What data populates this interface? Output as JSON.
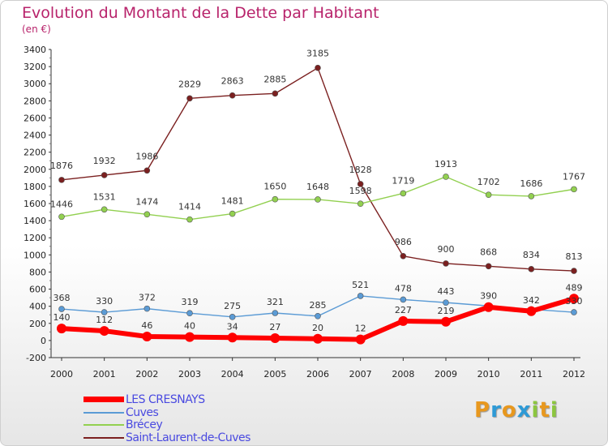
{
  "title": "Evolution du Montant de la Dette par Habitant",
  "subtitle": "(en €)",
  "logo": {
    "letters": [
      "P",
      "r",
      "o",
      "x",
      "i",
      "t",
      "i"
    ],
    "colors": [
      "#e8981e",
      "#2e9ad6",
      "#e8981e",
      "#2e9ad6",
      "#8cc63f",
      "#e8981e",
      "#8cc63f"
    ]
  },
  "chart_data": {
    "type": "line",
    "x": [
      "2000",
      "2001",
      "2002",
      "2003",
      "2004",
      "2005",
      "2006",
      "2007",
      "2008",
      "2009",
      "2010",
      "2011",
      "2012"
    ],
    "ylim": [
      -200,
      3400
    ],
    "yticks": [
      -200,
      0,
      200,
      400,
      600,
      800,
      1000,
      1200,
      1400,
      1600,
      1800,
      2000,
      2200,
      2400,
      2600,
      2800,
      3000,
      3200,
      3400
    ],
    "grid": false,
    "series": [
      {
        "name": "LES CRESNAYS",
        "color": "#ff0000",
        "values": [
          140,
          112,
          46,
          40,
          34,
          27,
          20,
          12,
          227,
          219,
          390,
          342,
          489
        ],
        "labels": [
          "140",
          "112",
          "46",
          "40",
          "34",
          "27",
          "20",
          "12",
          "227",
          "219",
          "390",
          "342",
          "489"
        ]
      },
      {
        "name": "Cuves",
        "color": "#5b9bd5",
        "values": [
          368,
          330,
          372,
          319,
          275,
          321,
          285,
          521,
          478,
          443,
          404,
          364,
          330
        ],
        "labels": [
          "368",
          "330",
          "372",
          "319",
          "275",
          "321",
          "285",
          "521",
          "478",
          "443",
          "",
          "",
          "330"
        ]
      },
      {
        "name": "Brécey",
        "color": "#92d050",
        "values": [
          1446,
          1531,
          1474,
          1414,
          1481,
          1650,
          1648,
          1598,
          1719,
          1913,
          1702,
          1686,
          1767
        ],
        "labels": [
          "1446",
          "1531",
          "1474",
          "1414",
          "1481",
          "1650",
          "1648",
          "1598",
          "1719",
          "1913",
          "1702",
          "1686",
          "1767"
        ]
      },
      {
        "name": "Saint-Laurent-de-Cuves",
        "color": "#7b2020",
        "values": [
          1876,
          1932,
          1986,
          2829,
          2863,
          2885,
          3185,
          1828,
          986,
          900,
          868,
          834,
          813
        ],
        "labels": [
          "1876",
          "1932",
          "1986",
          "2829",
          "2863",
          "2885",
          "3185",
          "1828",
          "986",
          "900",
          "868",
          "834",
          "813"
        ]
      }
    ]
  }
}
